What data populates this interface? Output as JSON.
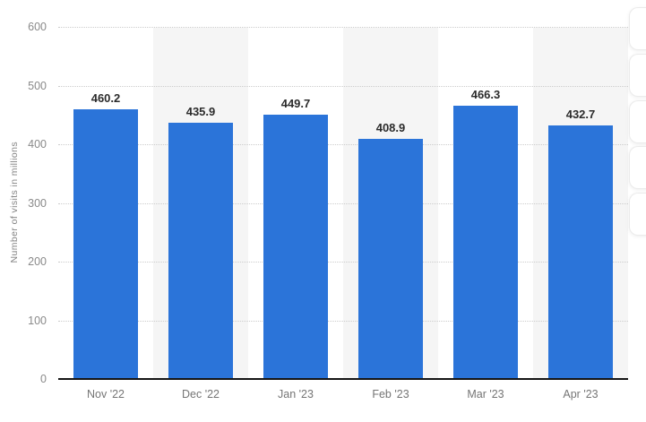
{
  "chart_data": {
    "type": "bar",
    "title": "",
    "categories": [
      "Nov '22",
      "Dec '22",
      "Jan '23",
      "Feb '23",
      "Mar '23",
      "Apr '23"
    ],
    "values": [
      460.2,
      435.9,
      449.7,
      408.9,
      466.3,
      432.7
    ],
    "value_labels": [
      "460.2",
      "435.9",
      "449.7",
      "408.9",
      "466.3",
      "432.7"
    ],
    "xlabel": "",
    "ylabel": "Number of visits in millions",
    "ylim": [
      0,
      600
    ],
    "yticks": [
      600,
      500,
      400,
      300,
      200,
      100,
      0
    ],
    "grid": "horizontal-dotted",
    "legend": "none",
    "background_stripes": "alternating vertical bands per category (white / light gray)",
    "colors": {
      "bar": "#2b74d9",
      "stripe_alt": "#f5f5f5",
      "gridline": "#cccccc",
      "axis_line": "#151515",
      "value_label": "#2b2b2b",
      "y_tick_label": "#8a8a8a",
      "x_tick_label": "#757575",
      "axis_title": "#848484"
    }
  },
  "side_toolbar": {
    "button_count": 5,
    "note": "cut-off floating buttons at right edge"
  }
}
